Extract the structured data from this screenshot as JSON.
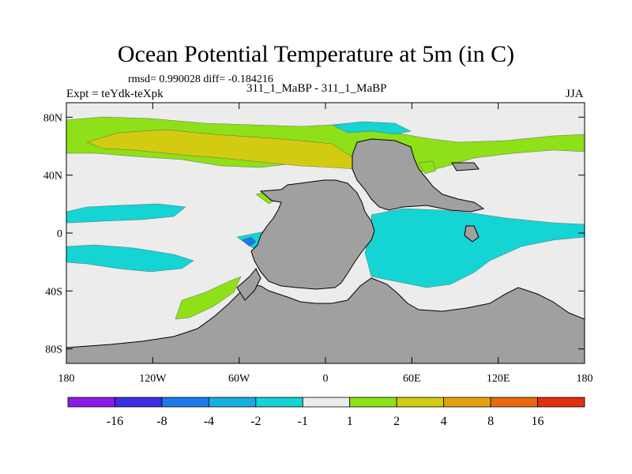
{
  "chart_data": {
    "type": "heatmap",
    "title": "Ocean Potential Temperature at 5m (in C)",
    "stats_text": "rmsd= 0.990028 diff= -0.184216",
    "experiment_label": "Expt = teYdk-teXpk",
    "comparison_label": "311_1_MaBP - 311_1_MaBP",
    "season": "JJA",
    "x_axis": {
      "range": [
        -180,
        180
      ],
      "ticks": [
        {
          "value": -180,
          "label": "180"
        },
        {
          "value": -120,
          "label": "120W"
        },
        {
          "value": -60,
          "label": "60W"
        },
        {
          "value": 0,
          "label": "0"
        },
        {
          "value": 60,
          "label": "60E"
        },
        {
          "value": 120,
          "label": "120E"
        },
        {
          "value": 180,
          "label": "180"
        }
      ]
    },
    "y_axis": {
      "range": [
        -90,
        90
      ],
      "ticks": [
        {
          "value": 80,
          "label": "80N"
        },
        {
          "value": 40,
          "label": "40N"
        },
        {
          "value": 0,
          "label": "0"
        },
        {
          "value": -40,
          "label": "40S"
        },
        {
          "value": -80,
          "label": "80S"
        }
      ]
    },
    "colorbar": {
      "colors": [
        "#8a1ce6",
        "#3c2de0",
        "#1a7be6",
        "#17aee0",
        "#14d4d4",
        "#ececec",
        "#8ee018",
        "#d2cb11",
        "#e6a10e",
        "#e66a0c",
        "#e0300e"
      ],
      "labels": [
        "-16",
        "-8",
        "-4",
        "-2",
        "-1",
        "1",
        "2",
        "4",
        "8",
        "16"
      ]
    },
    "colors": {
      "background": "#ececec",
      "land": "#a0a0a0",
      "cyan": "#14d4d4",
      "green": "#8ee018",
      "yellow": "#d2cb11",
      "blue": "#1a7be6",
      "frame": "#000000"
    },
    "regions": {
      "warm_band_lons_lats": [
        [
          -180,
          76
        ],
        [
          -140,
          78
        ],
        [
          -80,
          74
        ],
        [
          -20,
          68
        ],
        [
          40,
          66
        ],
        [
          100,
          62
        ],
        [
          180,
          60
        ]
      ],
      "warm_core_lons_lats": [
        [
          -160,
          66
        ],
        [
          -120,
          70
        ],
        [
          -60,
          68
        ],
        [
          -10,
          54
        ],
        [
          20,
          48
        ]
      ],
      "cool_indian_ocean_lons_lats": [
        [
          40,
          20
        ],
        [
          80,
          22
        ],
        [
          130,
          14
        ],
        [
          150,
          6
        ],
        [
          100,
          -10
        ],
        [
          60,
          -30
        ],
        [
          30,
          -20
        ]
      ]
    }
  }
}
